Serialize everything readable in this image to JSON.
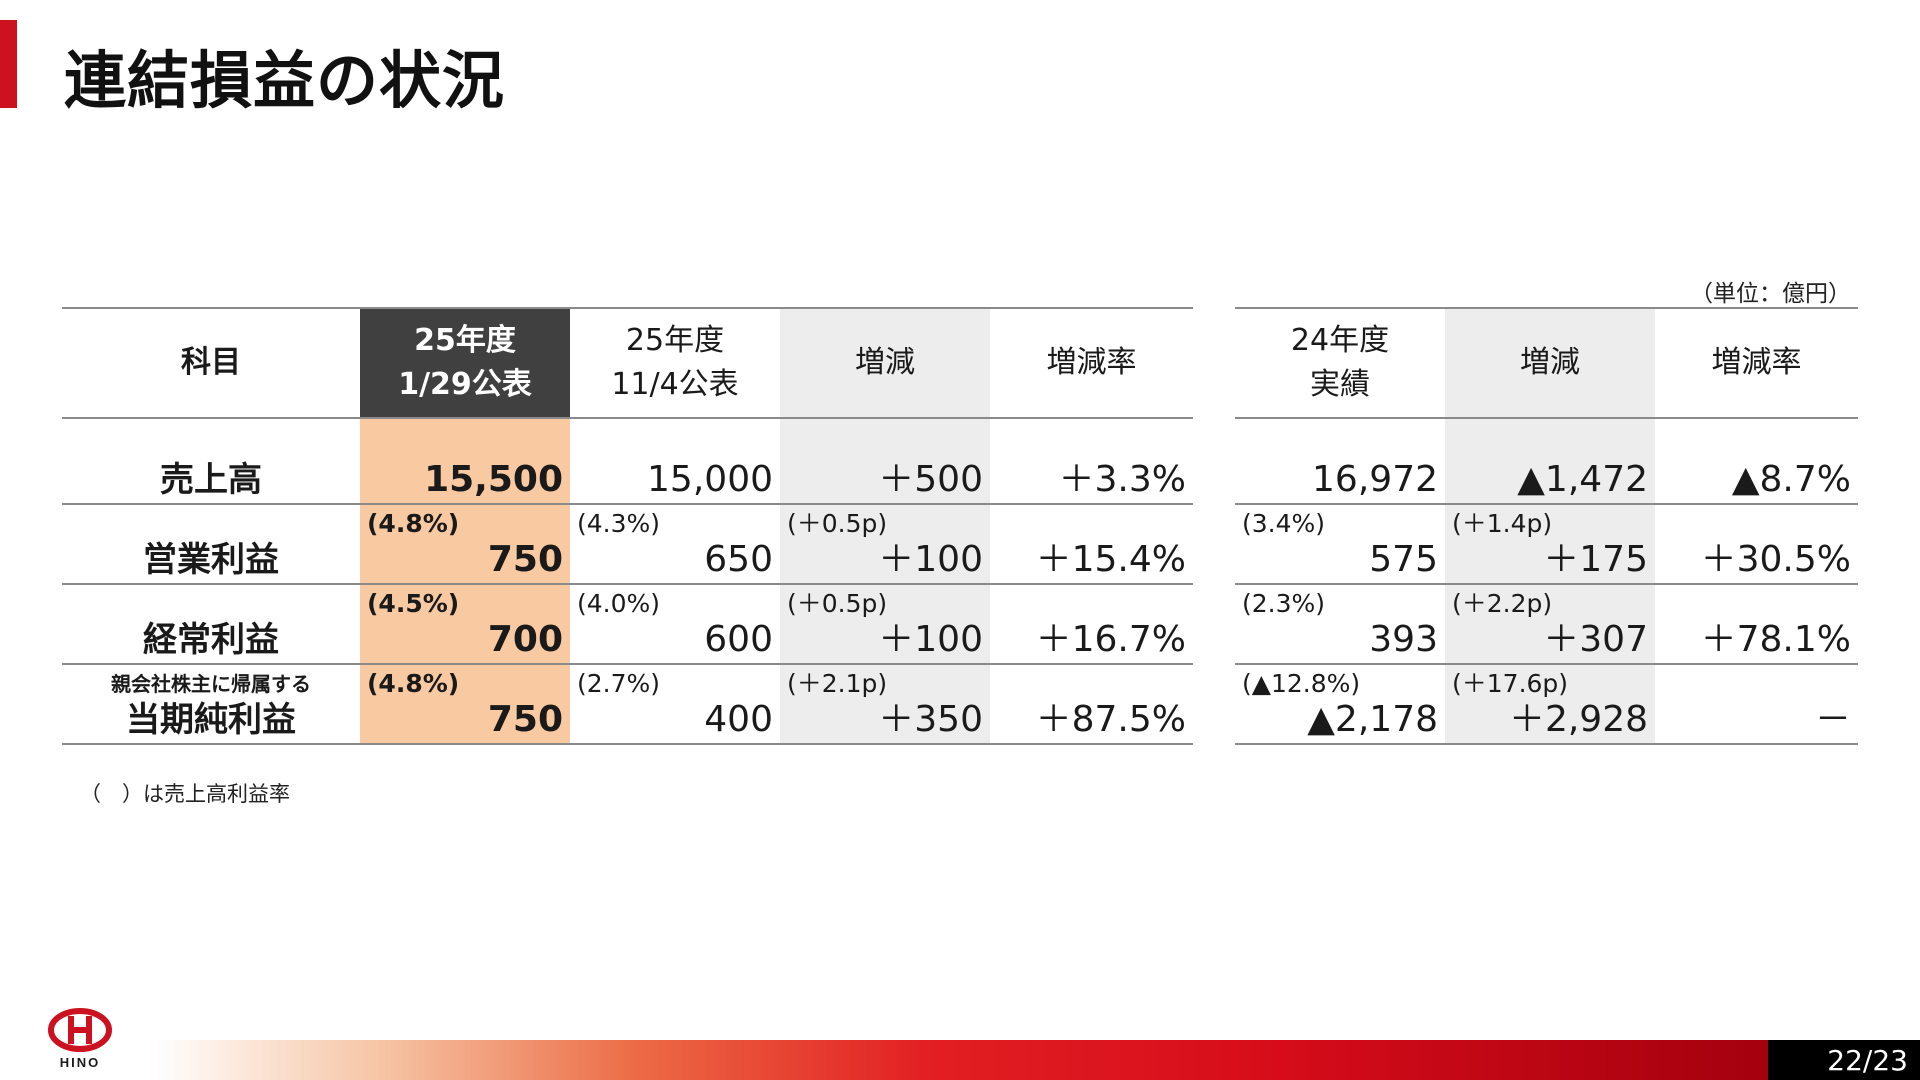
{
  "title": "連結損益の状況",
  "unit": "（単位：億円）",
  "footnote": "（　）は売上高利益率",
  "page": "22/23",
  "logo_text": "HINO",
  "colors": {
    "accent": "#cc1220",
    "highlight": "#f9c9a2",
    "header_dark": "#404040",
    "shade": "#ededed"
  },
  "left_table": {
    "headers": {
      "subject": "科目",
      "fy25_new_1": "25年度",
      "fy25_new_2": "1/29公表",
      "fy25_prev_1": "25年度",
      "fy25_prev_2": "11/4公表",
      "change": "増減",
      "change_rate": "増減率"
    },
    "rows": {
      "sales": {
        "label": "売上高",
        "fy25_new": "15,500",
        "fy25_prev": "15,000",
        "change": "＋500",
        "rate": "＋3.3%"
      },
      "op": {
        "label": "営業利益",
        "margin_new": "(4.8%)",
        "margin_prev": "(4.3%)",
        "margin_change": "(＋0.5p)",
        "fy25_new": "750",
        "fy25_prev": "650",
        "change": "＋100",
        "rate": "＋15.4%"
      },
      "ord": {
        "label": "経常利益",
        "margin_new": "(4.5%)",
        "margin_prev": "(4.0%)",
        "margin_change": "(＋0.5p)",
        "fy25_new": "700",
        "fy25_prev": "600",
        "change": "＋100",
        "rate": "＋16.7%"
      },
      "net": {
        "label_top": "親会社株主に帰属する",
        "label": "当期純利益",
        "margin_new": "(4.8%)",
        "margin_prev": "(2.7%)",
        "margin_change": "(＋2.1p)",
        "fy25_new": "750",
        "fy25_prev": "400",
        "change": "＋350",
        "rate": "＋87.5%"
      }
    }
  },
  "right_table": {
    "headers": {
      "fy24_1": "24年度",
      "fy24_2": "実績",
      "change": "増減",
      "change_rate": "増減率"
    },
    "rows": {
      "sales": {
        "fy24": "16,972",
        "change": "▲1,472",
        "rate": "▲8.7%"
      },
      "op": {
        "margin": "(3.4%)",
        "margin_change": "(＋1.4p)",
        "fy24": "575",
        "change": "＋175",
        "rate": "＋30.5%"
      },
      "ord": {
        "margin": "(2.3%)",
        "margin_change": "(＋2.2p)",
        "fy24": "393",
        "change": "＋307",
        "rate": "＋78.1%"
      },
      "net": {
        "margin": "(▲12.8%)",
        "margin_change": "(＋17.6p)",
        "fy24": "▲2,178",
        "change": "＋2,928",
        "rate": "－"
      }
    }
  }
}
